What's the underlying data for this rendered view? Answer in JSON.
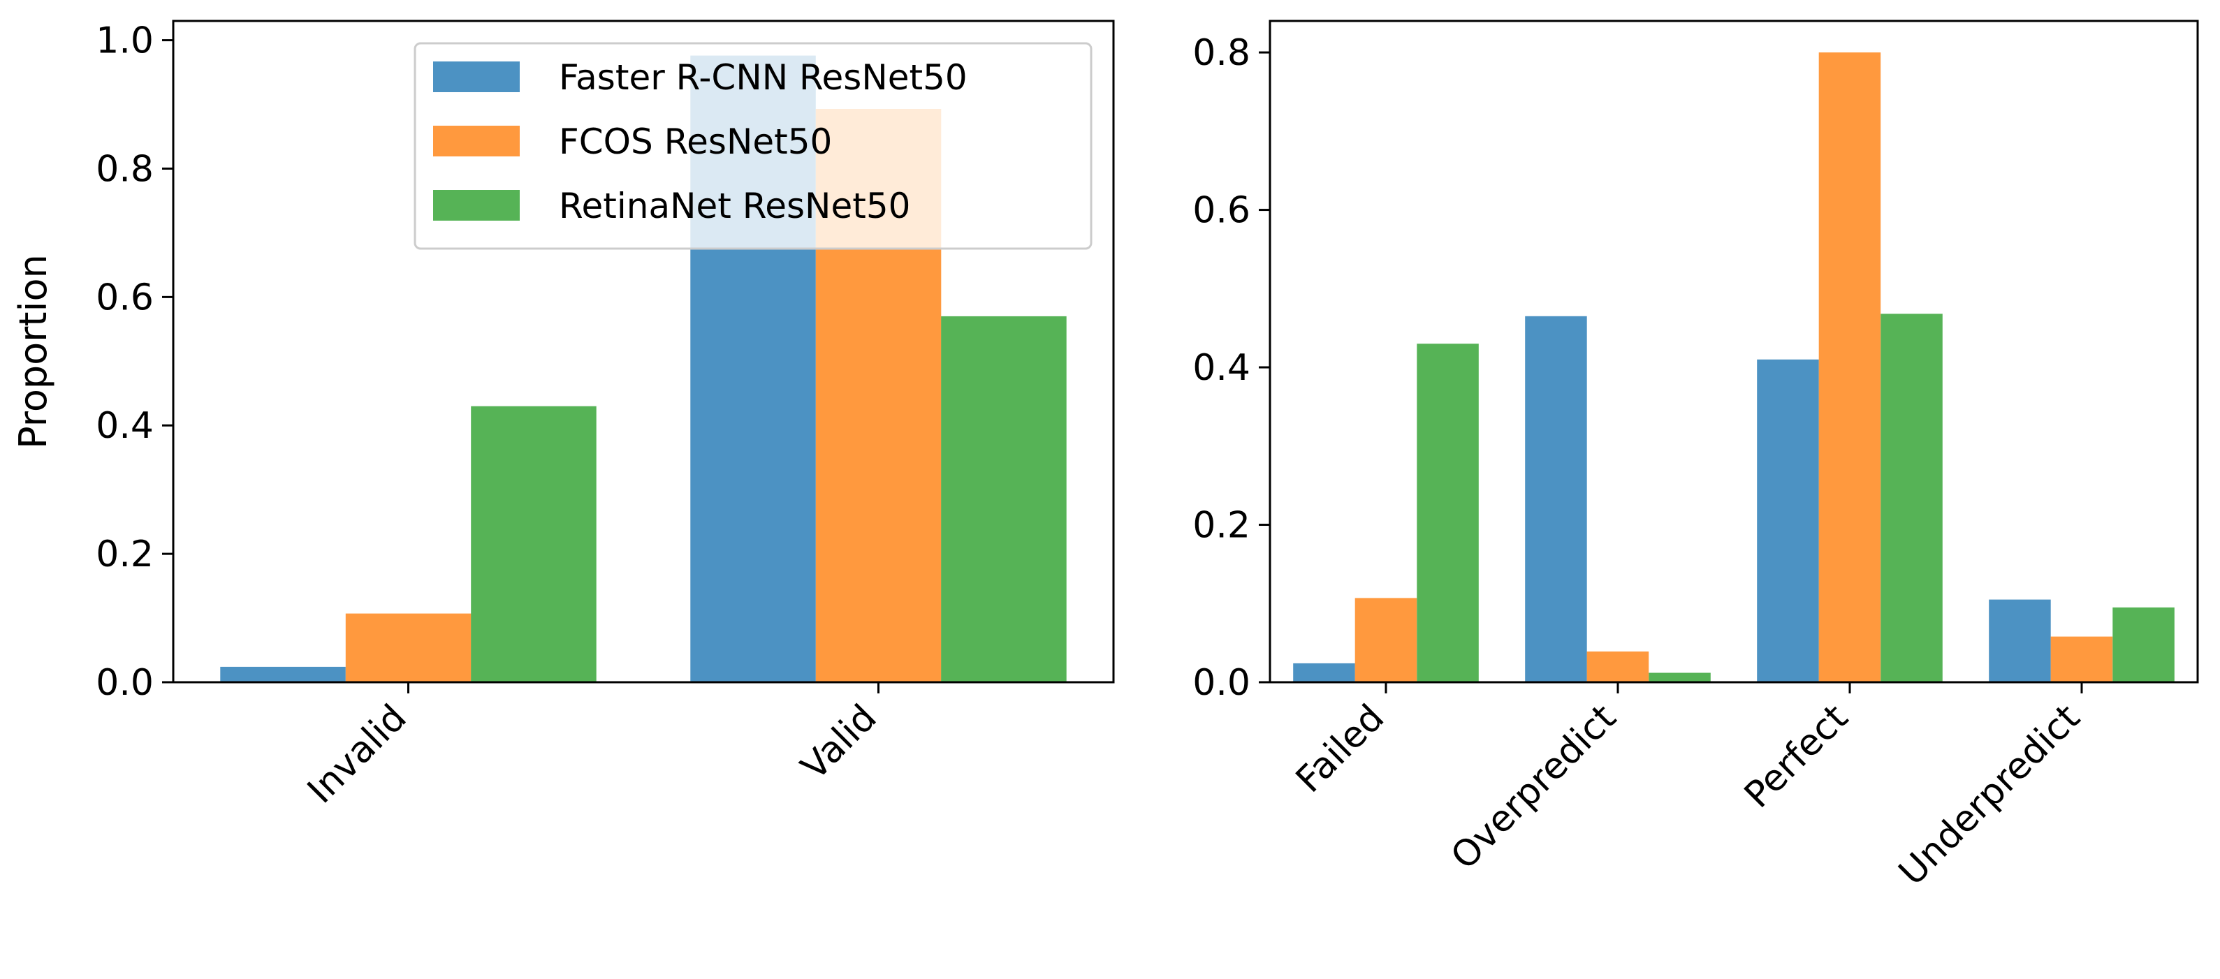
{
  "chart_data": [
    {
      "type": "bar",
      "title": "",
      "xlabel": "",
      "ylabel": "Proportion",
      "categories": [
        "Invalid",
        "Valid"
      ],
      "ylim": [
        0,
        1.03
      ],
      "yticks": [
        "0.0",
        "0.2",
        "0.4",
        "0.6",
        "0.8",
        "1.0"
      ],
      "ytick_values": [
        0,
        0.2,
        0.4,
        0.6,
        0.8,
        1.0
      ],
      "grid": false,
      "legend": "top-right",
      "series": [
        {
          "name": "Faster R-CNN ResNet50",
          "color": "#1f77b4",
          "values": [
            0.024,
            0.976
          ]
        },
        {
          "name": "FCOS ResNet50",
          "color": "#ff7f0e",
          "values": [
            0.107,
            0.893
          ]
        },
        {
          "name": "RetinaNet ResNet50",
          "color": "#2ca02c",
          "values": [
            0.43,
            0.57
          ]
        }
      ]
    },
    {
      "type": "bar",
      "title": "",
      "xlabel": "",
      "ylabel": "",
      "categories": [
        "Failed",
        "Overpredict",
        "Perfect",
        "Underpredict"
      ],
      "ylim": [
        0,
        0.84
      ],
      "yticks": [
        "0.0",
        "0.2",
        "0.4",
        "0.6",
        "0.8"
      ],
      "ytick_values": [
        0,
        0.2,
        0.4,
        0.6,
        0.8
      ],
      "grid": false,
      "series": [
        {
          "name": "Faster R-CNN ResNet50",
          "color": "#1f77b4",
          "values": [
            0.024,
            0.465,
            0.41,
            0.105
          ]
        },
        {
          "name": "FCOS ResNet50",
          "color": "#ff7f0e",
          "values": [
            0.107,
            0.039,
            0.8,
            0.058
          ]
        },
        {
          "name": "RetinaNet ResNet50",
          "color": "#2ca02c",
          "values": [
            0.43,
            0.012,
            0.468,
            0.095
          ]
        }
      ]
    }
  ]
}
